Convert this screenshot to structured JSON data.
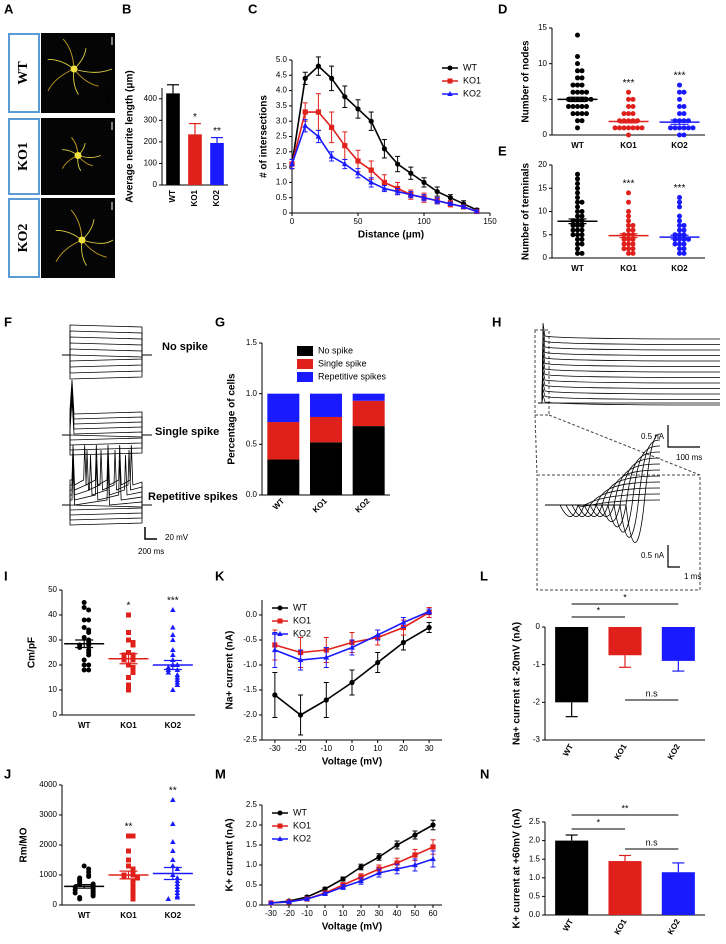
{
  "chart_data": [
    {
      "panel": "A",
      "type": "image",
      "labels": [
        "WT",
        "KO1",
        "KO2"
      ],
      "stain": [
        "MAP2",
        "Tuj1"
      ]
    },
    {
      "panel": "B",
      "type": "bar",
      "ylabel": "Average neurite length (μm)",
      "categories": [
        "WT",
        "KO1",
        "KO2"
      ],
      "values": [
        425,
        235,
        195
      ],
      "errors": [
        40,
        50,
        25
      ],
      "colors": [
        "#000000",
        "#e0201b",
        "#1a1aff"
      ],
      "significance": [
        null,
        "*",
        "**"
      ],
      "ylim": [
        0,
        450
      ],
      "yticks": [
        0,
        100,
        200,
        300,
        400
      ]
    },
    {
      "panel": "C",
      "type": "line",
      "xlabel": "Distance (μm)",
      "ylabel": "# of intersections",
      "x": [
        0,
        10,
        20,
        30,
        40,
        50,
        60,
        70,
        80,
        90,
        100,
        110,
        120,
        130,
        140
      ],
      "xlim": [
        0,
        150
      ],
      "xticks": [
        0,
        50,
        100,
        150
      ],
      "ylim": [
        0,
        5
      ],
      "yticks": [
        0,
        0.5,
        {
          "value": 1,
          "label": "1.0"
        },
        1.5,
        {
          "value": 2,
          "label": "2.0"
        },
        2.5,
        {
          "value": 3,
          "label": "3.0"
        },
        3.5,
        {
          "value": 4,
          "label": "4.0"
        },
        4.5,
        {
          "value": 5,
          "label": "5.0"
        }
      ],
      "legend": "upper right",
      "series": [
        {
          "name": "WT",
          "color": "#000000",
          "marker": "circle",
          "values": [
            1.6,
            4.4,
            4.8,
            4.4,
            3.8,
            3.4,
            3.0,
            2.1,
            1.6,
            1.3,
            1.0,
            0.7,
            0.5,
            0.3,
            0.1
          ],
          "errors": [
            0.15,
            0.2,
            0.3,
            0.4,
            0.35,
            0.3,
            0.3,
            0.3,
            0.25,
            0.2,
            0.15,
            0.15,
            0.1,
            0.1,
            0.05
          ]
        },
        {
          "name": "KO1",
          "color": "#e0201b",
          "marker": "square",
          "values": [
            1.6,
            3.3,
            3.3,
            2.8,
            2.2,
            1.7,
            1.4,
            1.0,
            0.8,
            0.6,
            0.5,
            0.4,
            0.3,
            0.2,
            0.05
          ],
          "errors": [
            0.15,
            0.3,
            0.6,
            0.5,
            0.45,
            0.35,
            0.3,
            0.25,
            0.2,
            0.15,
            0.15,
            0.1,
            0.1,
            0.05,
            0.05
          ]
        },
        {
          "name": "KO2",
          "color": "#1a1aff",
          "marker": "triangle",
          "values": [
            1.6,
            2.85,
            2.5,
            1.85,
            1.6,
            1.3,
            1.0,
            0.8,
            0.7,
            0.6,
            0.5,
            0.4,
            0.3,
            0.2,
            0.05
          ],
          "errors": [
            0.15,
            0.2,
            0.2,
            0.15,
            0.15,
            0.15,
            0.15,
            0.1,
            0.1,
            0.1,
            0.1,
            0.1,
            0.05,
            0.05,
            0.05
          ]
        }
      ]
    },
    {
      "panel": "D",
      "type": "dotplot",
      "ylabel": "Number of nodes",
      "categories": [
        "WT",
        "KO1",
        "KO2"
      ],
      "ylim": [
        0,
        15
      ],
      "yticks": [
        0,
        5,
        10,
        15
      ],
      "significance": [
        null,
        "***",
        "***"
      ],
      "groups": [
        {
          "color": "#000000",
          "marker": "circle",
          "values": [
            14,
            11,
            10,
            9,
            9,
            8,
            8,
            7,
            7,
            7,
            6,
            6,
            6,
            6,
            5,
            5,
            5,
            5,
            5,
            5,
            4,
            4,
            4,
            4,
            4,
            3,
            3,
            3,
            3,
            2,
            2,
            1
          ],
          "mean": 5.0,
          "error": 0.3
        },
        {
          "color": "#e0201b",
          "marker": "circle",
          "values": [
            6,
            5,
            5,
            4,
            4,
            3,
            3,
            3,
            2,
            2,
            2,
            2,
            2,
            1,
            1,
            1,
            1,
            1,
            1,
            1,
            0
          ],
          "mean": 1.9,
          "error": 0.2
        },
        {
          "color": "#1a1aff",
          "marker": "circle",
          "values": [
            7,
            6,
            6,
            5,
            4,
            4,
            3,
            3,
            2,
            2,
            2,
            2,
            1,
            1,
            1,
            1,
            1,
            1,
            0,
            0
          ],
          "mean": 1.8,
          "error": 0.3
        }
      ]
    },
    {
      "panel": "E",
      "type": "dotplot",
      "ylabel": "Number of terminals",
      "categories": [
        "WT",
        "KO1",
        "KO2"
      ],
      "ylim": [
        0,
        20
      ],
      "yticks": [
        0,
        5,
        10,
        15,
        20
      ],
      "significance": [
        null,
        "***",
        "***"
      ],
      "groups": [
        {
          "color": "#000000",
          "marker": "circle",
          "values": [
            18,
            17,
            16,
            15,
            14,
            13,
            12,
            12,
            11,
            10,
            10,
            9,
            9,
            8,
            8,
            8,
            7,
            7,
            7,
            6,
            6,
            6,
            5,
            5,
            5,
            4,
            4,
            3,
            3,
            2,
            1,
            1
          ],
          "mean": 7.9,
          "error": 0.5
        },
        {
          "color": "#e0201b",
          "marker": "circle",
          "values": [
            14,
            12,
            10,
            9,
            8,
            7,
            7,
            6,
            6,
            5,
            5,
            5,
            4,
            4,
            4,
            3,
            3,
            3,
            2,
            2,
            2,
            1,
            1
          ],
          "mean": 4.8,
          "error": 0.4
        },
        {
          "color": "#1a1aff",
          "marker": "circle",
          "values": [
            13,
            12,
            11,
            9,
            8,
            7,
            7,
            6,
            6,
            5,
            5,
            5,
            4,
            4,
            4,
            4,
            3,
            3,
            3,
            2,
            2,
            1,
            1
          ],
          "mean": 4.5,
          "error": 0.4
        }
      ]
    },
    {
      "panel": "F",
      "type": "traces",
      "labels": [
        "No spike",
        "Single spike",
        "Repetitive spikes"
      ],
      "scalebars": [
        "20 mV",
        "200 ms"
      ]
    },
    {
      "panel": "G",
      "type": "stacked_bar",
      "ylabel": "Percentage of cells",
      "categories": [
        "WT",
        "KO1",
        "KO2"
      ],
      "ylim": [
        0,
        1.5
      ],
      "yticks": [
        {
          "value": 0,
          "label": "0.0"
        },
        0.5,
        {
          "value": 1,
          "label": "1.0"
        },
        1.5
      ],
      "legend": "upper right",
      "series": [
        {
          "name": "No spike",
          "color": "#000000",
          "values": [
            0.35,
            0.52,
            0.68
          ]
        },
        {
          "name": "Single spike",
          "color": "#e0201b",
          "values": [
            0.37,
            0.25,
            0.25
          ]
        },
        {
          "name": "Repetitive spikes",
          "color": "#1a1aff",
          "values": [
            0.28,
            0.23,
            0.07
          ]
        }
      ]
    },
    {
      "panel": "H",
      "type": "traces",
      "scalebars": [
        "0.5 nA",
        "100 ms",
        "0.5 nA",
        "1 ms"
      ]
    },
    {
      "panel": "I",
      "type": "dotplot",
      "ylabel": "Cm/pF",
      "categories": [
        "WT",
        "KO1",
        "KO2"
      ],
      "ylim": [
        0,
        50
      ],
      "yticks": [
        0,
        10,
        20,
        30,
        40,
        50
      ],
      "significance": [
        null,
        "*",
        "***"
      ],
      "groups": [
        {
          "color": "#000000",
          "marker": "circle",
          "values": [
            45,
            43,
            42,
            38,
            38,
            35,
            34,
            33,
            31,
            30,
            29,
            28,
            28,
            27,
            26,
            25,
            24,
            22,
            20,
            20,
            18,
            18
          ],
          "mean": 28.5,
          "error": 1.5
        },
        {
          "color": "#e0201b",
          "marker": "square",
          "values": [
            40,
            33,
            30,
            29,
            28,
            25,
            24,
            24,
            23,
            22,
            22,
            20,
            19,
            18,
            17,
            15,
            12,
            10
          ],
          "mean": 22.5,
          "error": 2
        },
        {
          "color": "#1a1aff",
          "marker": "triangle",
          "values": [
            42,
            35,
            32,
            30,
            26,
            24,
            22,
            20,
            20,
            19,
            18,
            18,
            17,
            16,
            15,
            14,
            13,
            12,
            10
          ],
          "mean": 20,
          "error": 1.8
        }
      ]
    },
    {
      "panel": "K",
      "type": "line",
      "xlabel": "Voltage (mV)",
      "ylabel": "Na+ current (nA)",
      "x": [
        -30,
        -20,
        -10,
        0,
        10,
        20,
        30
      ],
      "xlim": [
        -35,
        35
      ],
      "xticks": [
        -30,
        -20,
        -10,
        0,
        10,
        20,
        30
      ],
      "ylim": [
        -2.5,
        0.3
      ],
      "yticks": [
        -2.5,
        {
          "value": -2,
          "label": "-2.0"
        },
        -1.5,
        {
          "value": -1,
          "label": "-1.0"
        },
        -0.5,
        {
          "value": 0,
          "label": "0.0"
        }
      ],
      "legend": "upper left",
      "series": [
        {
          "name": "WT",
          "color": "#000000",
          "marker": "circle",
          "values": [
            -1.6,
            -2.0,
            -1.7,
            -1.35,
            -0.95,
            -0.55,
            -0.25
          ],
          "errors": [
            0.45,
            0.4,
            0.35,
            0.25,
            0.2,
            0.15,
            0.1
          ]
        },
        {
          "name": "KO1",
          "color": "#e0201b",
          "marker": "square",
          "values": [
            -0.6,
            -0.75,
            -0.7,
            -0.55,
            -0.45,
            -0.25,
            0.05
          ],
          "errors": [
            0.3,
            0.3,
            0.25,
            0.2,
            0.15,
            0.15,
            0.1
          ]
        },
        {
          "name": "KO2",
          "color": "#1a1aff",
          "marker": "triangle",
          "values": [
            -0.7,
            -0.9,
            -0.85,
            -0.65,
            -0.4,
            -0.15,
            0.07
          ],
          "errors": [
            0.35,
            0.2,
            0.2,
            0.15,
            0.1,
            0.1,
            0.05
          ]
        }
      ]
    },
    {
      "panel": "L",
      "type": "bar",
      "ylabel": "Na+ current at -20mV (nA)",
      "categories": [
        "WT",
        "KO1",
        "KO2"
      ],
      "values": [
        -2.0,
        -0.75,
        -0.9
      ],
      "errors": [
        0.38,
        0.32,
        0.27
      ],
      "colors": [
        "#000000",
        "#e0201b",
        "#1a1aff"
      ],
      "ylim": [
        -3,
        0
      ],
      "yticks": [
        -3,
        -2,
        -1,
        0
      ],
      "comparisons": [
        {
          "pair": [
            "WT",
            "KO1"
          ],
          "label": "*"
        },
        {
          "pair": [
            "WT",
            "KO2"
          ],
          "label": "*"
        },
        {
          "pair": [
            "KO1",
            "KO2"
          ],
          "label": "n.s"
        }
      ]
    },
    {
      "panel": "J",
      "type": "dotplot",
      "ylabel": "Rm/MO",
      "categories": [
        "WT",
        "KO1",
        "KO2"
      ],
      "ylim": [
        0,
        4000
      ],
      "yticks": [
        0,
        1000,
        2000,
        3000,
        4000
      ],
      "significance": [
        null,
        "**",
        "**"
      ],
      "groups": [
        {
          "color": "#000000",
          "marker": "circle",
          "values": [
            1300,
            1200,
            1100,
            1000,
            950,
            900,
            850,
            800,
            750,
            700,
            700,
            650,
            600,
            600,
            550,
            500,
            500,
            450,
            400,
            400,
            350,
            300,
            250,
            200
          ],
          "mean": 620,
          "error": 60
        },
        {
          "color": "#e0201b",
          "marker": "square",
          "values": [
            2300,
            2300,
            1800,
            1500,
            1300,
            1200,
            1100,
            1000,
            1000,
            950,
            900,
            800,
            700,
            600,
            500,
            400,
            300,
            200
          ],
          "mean": 1000,
          "error": 130
        },
        {
          "color": "#1a1aff",
          "marker": "triangle",
          "values": [
            3500,
            2700,
            2100,
            1800,
            1500,
            1300,
            1200,
            1000,
            900,
            800,
            700,
            600,
            500,
            400,
            300,
            250,
            200
          ],
          "mean": 1050,
          "error": 200
        }
      ]
    },
    {
      "panel": "M",
      "type": "line",
      "xlabel": "Voltage (mV)",
      "ylabel": "K+ current (nA)",
      "x": [
        -30,
        -20,
        -10,
        0,
        10,
        20,
        30,
        40,
        50,
        60
      ],
      "xlim": [
        -35,
        65
      ],
      "xticks": [
        -30,
        -20,
        -10,
        0,
        10,
        20,
        30,
        40,
        50,
        60
      ],
      "ylim": [
        0,
        2.5
      ],
      "yticks": [
        {
          "value": 0,
          "label": "0.0"
        },
        0.5,
        {
          "value": 1,
          "label": "1.0"
        },
        1.5,
        {
          "value": 2,
          "label": "2.0"
        },
        2.5
      ],
      "legend": "upper left",
      "series": [
        {
          "name": "WT",
          "color": "#000000",
          "marker": "circle",
          "values": [
            0.05,
            0.1,
            0.2,
            0.4,
            0.65,
            0.95,
            1.2,
            1.5,
            1.75,
            2.0
          ],
          "errors": [
            0.02,
            0.02,
            0.03,
            0.04,
            0.05,
            0.07,
            0.08,
            0.1,
            0.1,
            0.12
          ]
        },
        {
          "name": "KO1",
          "color": "#e0201b",
          "marker": "square",
          "values": [
            0.05,
            0.08,
            0.15,
            0.3,
            0.5,
            0.7,
            0.9,
            1.05,
            1.25,
            1.45
          ],
          "errors": [
            0.02,
            0.02,
            0.03,
            0.04,
            0.06,
            0.08,
            0.1,
            0.12,
            0.14,
            0.18
          ]
        },
        {
          "name": "KO2",
          "color": "#1a1aff",
          "marker": "triangle",
          "values": [
            0.05,
            0.08,
            0.15,
            0.28,
            0.45,
            0.6,
            0.8,
            0.9,
            1.0,
            1.15
          ],
          "errors": [
            0.02,
            0.02,
            0.03,
            0.04,
            0.06,
            0.08,
            0.1,
            0.12,
            0.15,
            0.2
          ]
        }
      ]
    },
    {
      "panel": "N",
      "type": "bar",
      "ylabel": "K+ current at +60mV (nA)",
      "categories": [
        "WT",
        "KO1",
        "KO2"
      ],
      "values": [
        2.0,
        1.45,
        1.15
      ],
      "errors": [
        0.15,
        0.15,
        0.25
      ],
      "colors": [
        "#000000",
        "#e0201b",
        "#1a1aff"
      ],
      "ylim": [
        0,
        2.5
      ],
      "yticks": [
        {
          "value": 0,
          "label": "0.0"
        },
        0.5,
        {
          "value": 1,
          "label": "1.0"
        },
        1.5,
        {
          "value": 2,
          "label": "2.0"
        },
        2.5
      ],
      "comparisons": [
        {
          "pair": [
            "WT",
            "KO1"
          ],
          "label": "*"
        },
        {
          "pair": [
            "WT",
            "KO2"
          ],
          "label": "**"
        },
        {
          "pair": [
            "KO1",
            "KO2"
          ],
          "label": "n.s"
        }
      ]
    }
  ]
}
